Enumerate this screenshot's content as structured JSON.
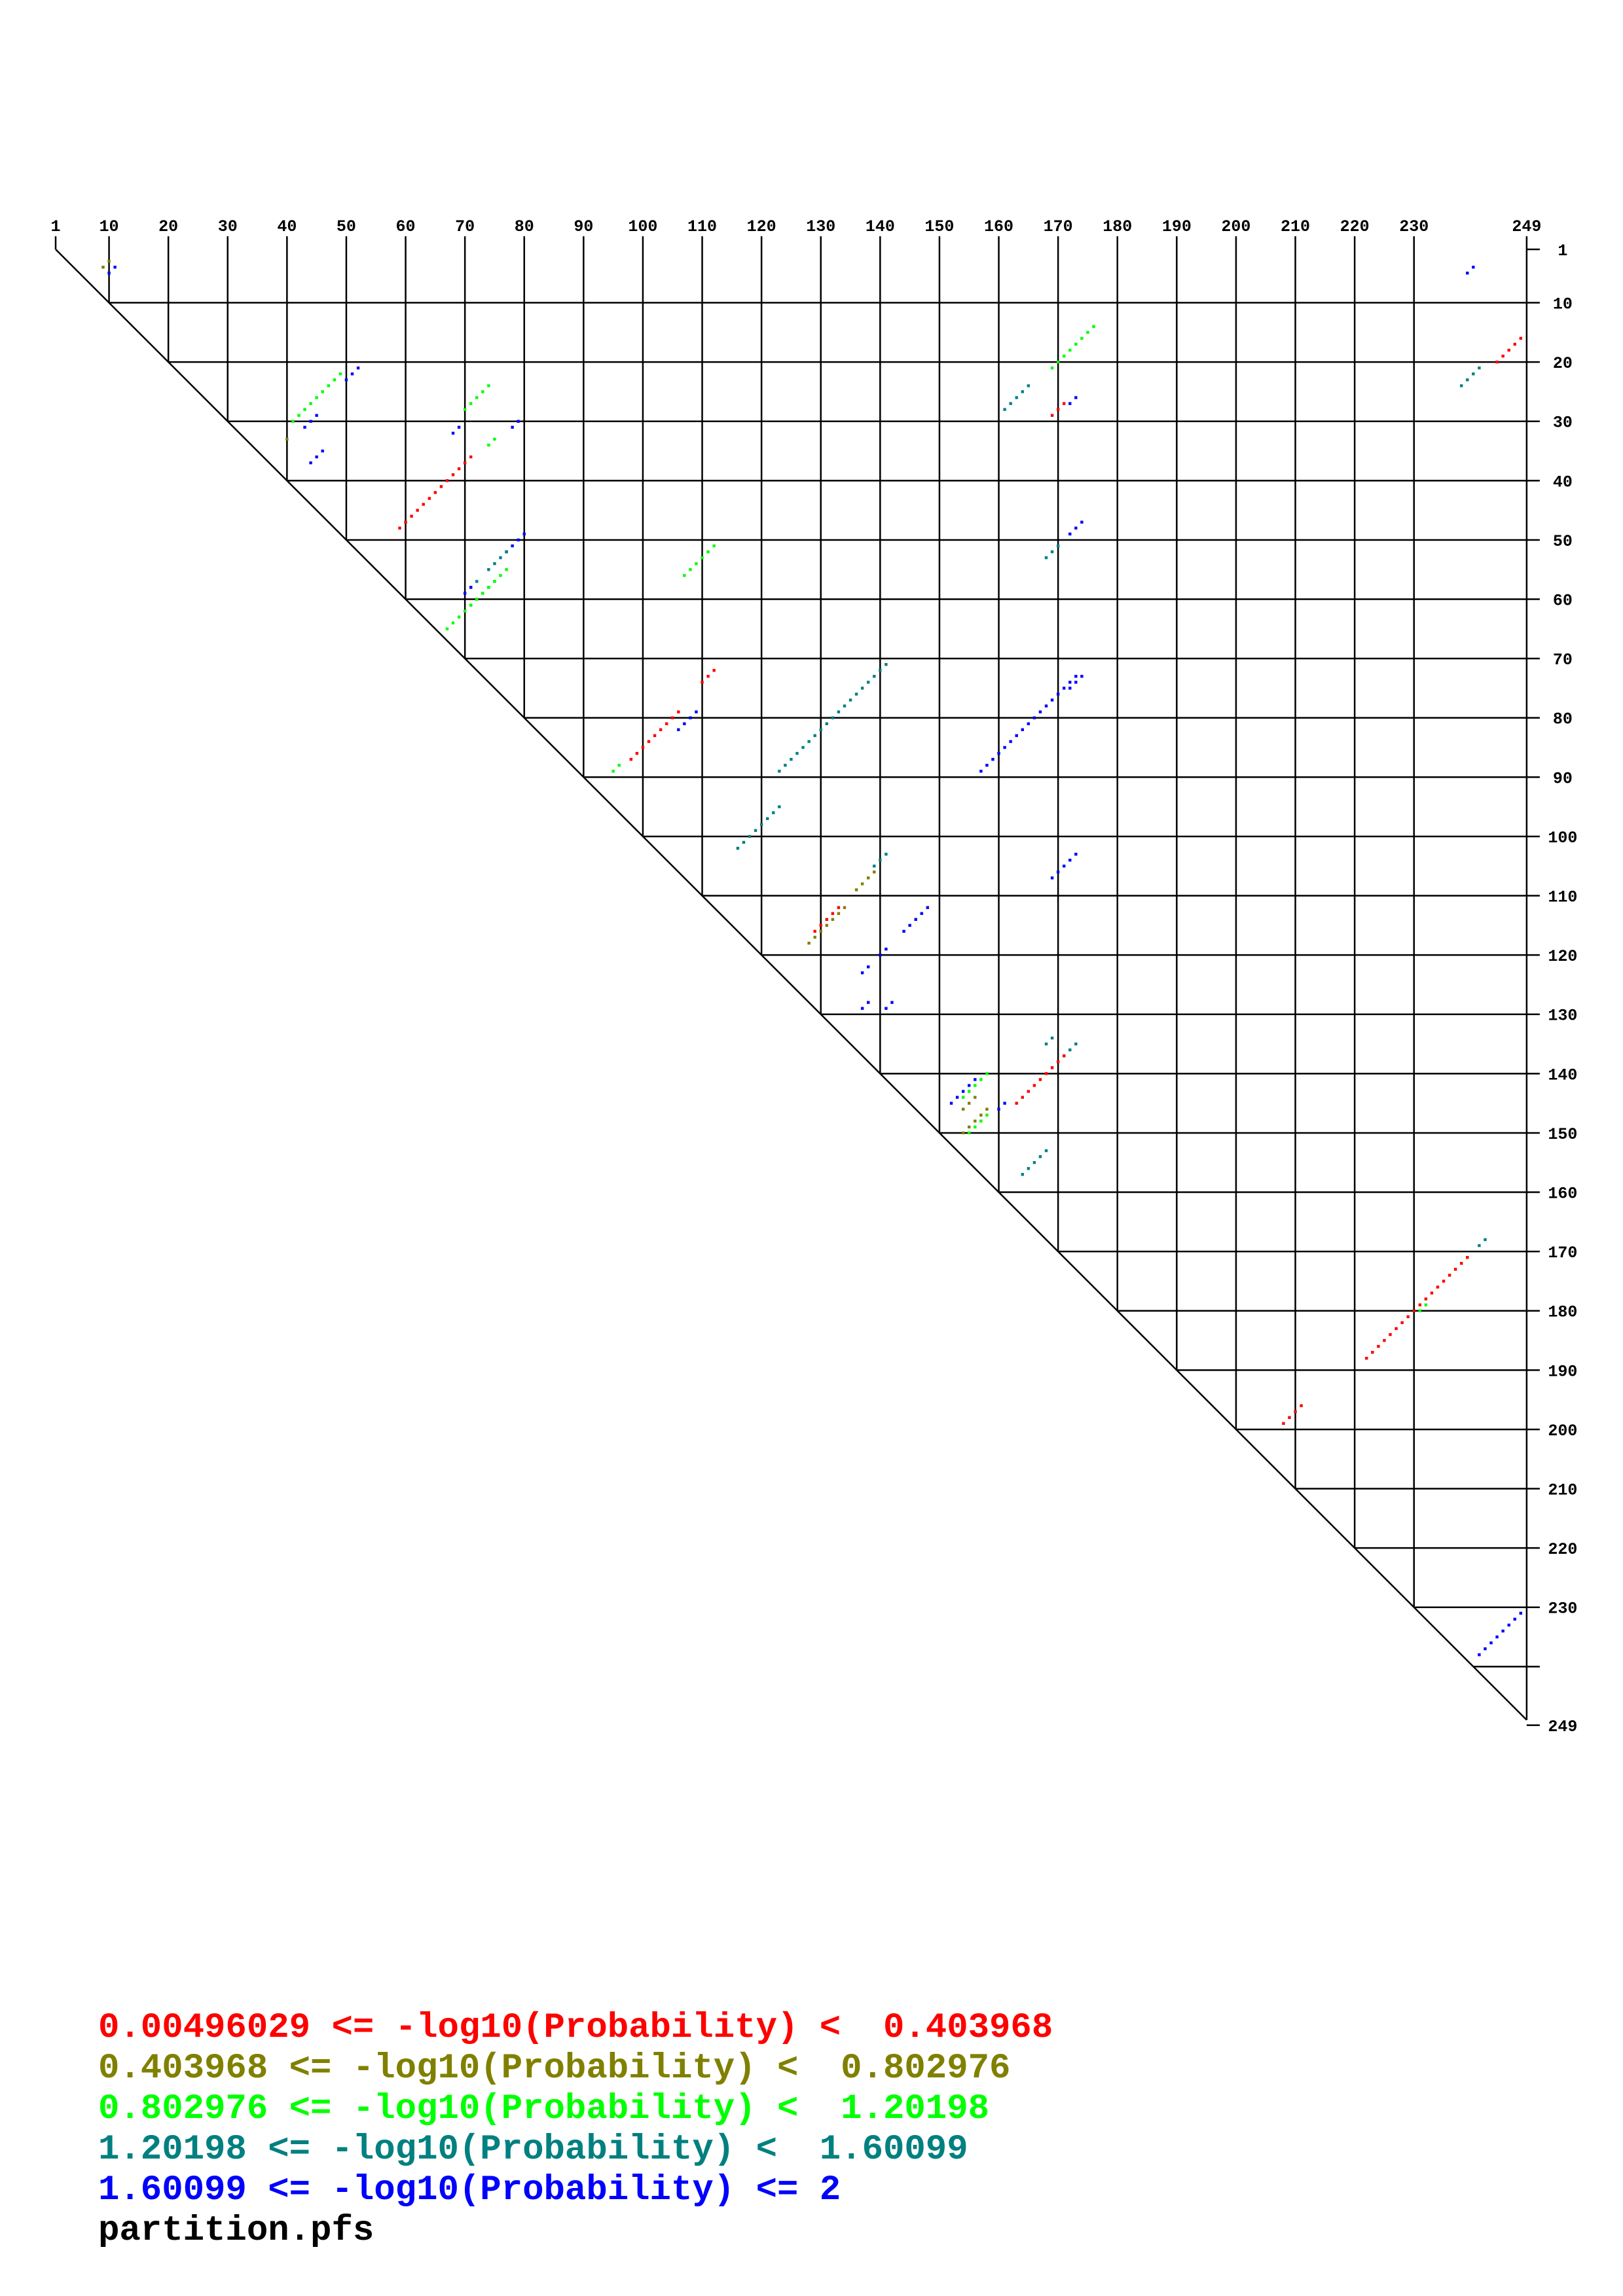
{
  "chart_data": {
    "type": "heatmap",
    "title": "",
    "sequence_length": 249,
    "x_tick_labels": [
      "1",
      "10",
      "20",
      "30",
      "40",
      "50",
      "60",
      "70",
      "80",
      "90",
      "100",
      "110",
      "120",
      "130",
      "140",
      "150",
      "160",
      "170",
      "180",
      "190",
      "200",
      "210",
      "220",
      "230",
      "249"
    ],
    "y_tick_labels": [
      "1",
      "10",
      "20",
      "30",
      "40",
      "50",
      "60",
      "70",
      "80",
      "90",
      "100",
      "110",
      "120",
      "130",
      "140",
      "150",
      "160",
      "170",
      "180",
      "190",
      "200",
      "210",
      "220",
      "230",
      "249"
    ],
    "colors": [
      "#ff0000",
      "#808000",
      "#00ff00",
      "#008080",
      "#0000ff"
    ],
    "legend": [
      {
        "label": "0.00496029 <= -log10(Probability) <  0.403968",
        "color": "#ff0000"
      },
      {
        "label": "0.403968 <= -log10(Probability) <  0.802976",
        "color": "#808000"
      },
      {
        "label": "0.802976 <= -log10(Probability) <  1.20198",
        "color": "#00ff00"
      },
      {
        "label": "1.20198 <= -log10(Probability) <  1.60099",
        "color": "#008080"
      },
      {
        "label": "1.60099 <= -log10(Probability) <= 2",
        "color": "#0000ff"
      }
    ],
    "helices": [
      {
        "i": 3,
        "j": 10,
        "len": 2,
        "c": 1
      },
      {
        "i": 4,
        "j": 11,
        "len": 2,
        "c": 4
      },
      {
        "i": 14,
        "j": 176,
        "len": 8,
        "c": 2
      },
      {
        "i": 16,
        "j": 248,
        "len": 5,
        "c": 0
      },
      {
        "i": 26,
        "j": 173,
        "len": 2,
        "c": 4
      },
      {
        "i": 27,
        "j": 171,
        "len": 3,
        "c": 0
      },
      {
        "i": 21,
        "j": 52,
        "len": 3,
        "c": 4
      },
      {
        "i": 22,
        "j": 49,
        "len": 9,
        "c": 2
      },
      {
        "i": 29,
        "j": 45,
        "len": 3,
        "c": 4
      },
      {
        "i": 33,
        "j": 40,
        "len": 1,
        "c": 1
      },
      {
        "i": 24,
        "j": 74,
        "len": 5,
        "c": 2
      },
      {
        "i": 30,
        "j": 79,
        "len": 2,
        "c": 4
      },
      {
        "i": 31,
        "j": 69,
        "len": 2,
        "c": 4
      },
      {
        "i": 33,
        "j": 75,
        "len": 2,
        "c": 2
      },
      {
        "i": 21,
        "j": 241,
        "len": 4,
        "c": 3
      },
      {
        "i": 4,
        "j": 240,
        "len": 2,
        "c": 4
      },
      {
        "i": 24,
        "j": 165,
        "len": 5,
        "c": 3
      },
      {
        "i": 35,
        "j": 46,
        "len": 3,
        "c": 4
      },
      {
        "i": 36,
        "j": 71,
        "len": 13,
        "c": 0
      },
      {
        "i": 47,
        "j": 174,
        "len": 3,
        "c": 4
      },
      {
        "i": 51,
        "j": 170,
        "len": 3,
        "c": 3
      },
      {
        "i": 49,
        "j": 80,
        "len": 4,
        "c": 4
      },
      {
        "i": 52,
        "j": 77,
        "len": 4,
        "c": 3
      },
      {
        "i": 51,
        "j": 112,
        "len": 6,
        "c": 2
      },
      {
        "i": 55,
        "j": 77,
        "len": 7,
        "c": 2
      },
      {
        "i": 57,
        "j": 72,
        "len": 2,
        "c": 3
      },
      {
        "i": 57,
        "j": 75,
        "len": 9,
        "c": 2
      },
      {
        "i": 58,
        "j": 71,
        "len": 2,
        "c": 4
      },
      {
        "i": 71,
        "j": 141,
        "len": 5,
        "c": 3
      },
      {
        "i": 72,
        "j": 112,
        "len": 3,
        "c": 0
      },
      {
        "i": 73,
        "j": 174,
        "len": 3,
        "c": 4
      },
      {
        "i": 73,
        "j": 173,
        "len": 17,
        "c": 4
      },
      {
        "i": 76,
        "j": 136,
        "len": 14,
        "c": 3
      },
      {
        "i": 79,
        "j": 109,
        "len": 4,
        "c": 4
      },
      {
        "i": 79,
        "j": 106,
        "len": 9,
        "c": 0
      },
      {
        "i": 88,
        "j": 96,
        "len": 2,
        "c": 2
      },
      {
        "i": 95,
        "j": 123,
        "len": 8,
        "c": 3
      },
      {
        "i": 103,
        "j": 141,
        "len": 3,
        "c": 3
      },
      {
        "i": 103,
        "j": 173,
        "len": 5,
        "c": 4
      },
      {
        "i": 106,
        "j": 139,
        "len": 4,
        "c": 1
      },
      {
        "i": 112,
        "j": 133,
        "len": 5,
        "c": 0
      },
      {
        "i": 112,
        "j": 134,
        "len": 7,
        "c": 1
      },
      {
        "i": 112,
        "j": 148,
        "len": 5,
        "c": 4
      },
      {
        "i": 119,
        "j": 141,
        "len": 2,
        "c": 4
      },
      {
        "i": 122,
        "j": 138,
        "len": 2,
        "c": 4
      },
      {
        "i": 128,
        "j": 142,
        "len": 2,
        "c": 4
      },
      {
        "i": 128,
        "j": 138,
        "len": 2,
        "c": 4
      },
      {
        "i": 134,
        "j": 169,
        "len": 2,
        "c": 3
      },
      {
        "i": 135,
        "j": 173,
        "len": 3,
        "c": 3
      },
      {
        "i": 137,
        "j": 171,
        "len": 9,
        "c": 0
      },
      {
        "i": 140,
        "j": 158,
        "len": 5,
        "c": 2
      },
      {
        "i": 141,
        "j": 156,
        "len": 5,
        "c": 4
      },
      {
        "i": 144,
        "j": 156,
        "len": 3,
        "c": 1
      },
      {
        "i": 145,
        "j": 161,
        "len": 2,
        "c": 4
      },
      {
        "i": 146,
        "j": 158,
        "len": 5,
        "c": 1
      },
      {
        "i": 147,
        "j": 158,
        "len": 4,
        "c": 2
      },
      {
        "i": 153,
        "j": 168,
        "len": 5,
        "c": 3
      },
      {
        "i": 168,
        "j": 242,
        "len": 2,
        "c": 3
      },
      {
        "i": 171,
        "j": 239,
        "len": 18,
        "c": 0
      },
      {
        "i": 179,
        "j": 232,
        "len": 2,
        "c": 2
      },
      {
        "i": 196,
        "j": 211,
        "len": 4,
        "c": 0
      },
      {
        "i": 231,
        "j": 248,
        "len": 8,
        "c": 4
      }
    ]
  },
  "filename": "partition.pfs"
}
